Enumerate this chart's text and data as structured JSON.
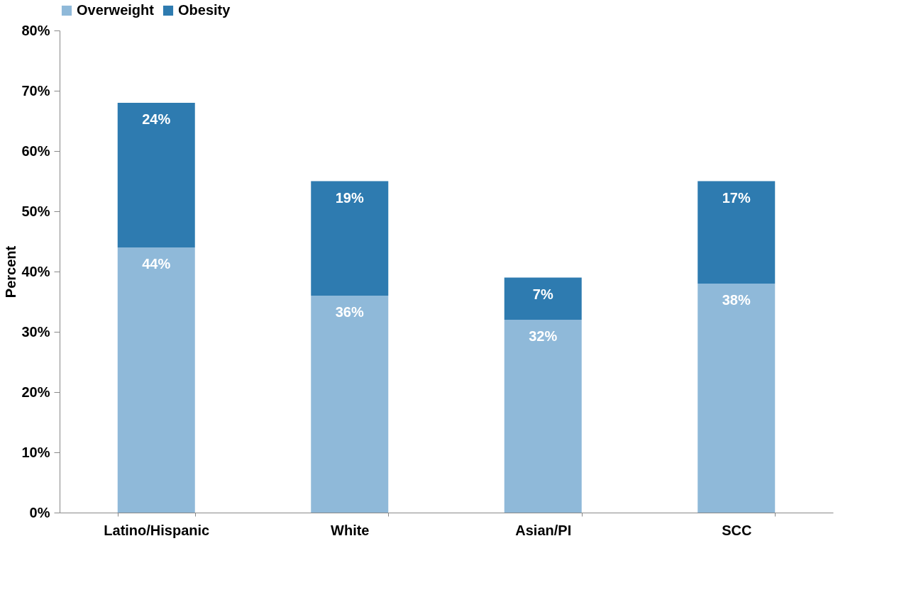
{
  "chart_data": {
    "type": "bar",
    "stacked": true,
    "ylabel": "Percent",
    "categories": [
      "Latino/Hispanic",
      "White",
      "Asian/PI",
      "SCC"
    ],
    "series": [
      {
        "name": "Overweight",
        "color": "#8fb9d9",
        "values": [
          44,
          36,
          32,
          38
        ],
        "value_labels": [
          "44%",
          "36%",
          "32%",
          "38%"
        ]
      },
      {
        "name": "Obesity",
        "color": "#2e7bb0",
        "values": [
          24,
          19,
          7,
          17
        ],
        "value_labels": [
          "24%",
          "19%",
          "7%",
          "17%"
        ]
      }
    ],
    "ylim": [
      0,
      80
    ],
    "yticks": [
      {
        "value": 0,
        "label": "0%"
      },
      {
        "value": 10,
        "label": "10%"
      },
      {
        "value": 20,
        "label": "20%"
      },
      {
        "value": 30,
        "label": "30%"
      },
      {
        "value": 40,
        "label": "40%"
      },
      {
        "value": 50,
        "label": "50%"
      },
      {
        "value": 60,
        "label": "60%"
      },
      {
        "value": 70,
        "label": "70%"
      },
      {
        "value": 80,
        "label": "80%"
      }
    ],
    "grid": false,
    "legend": "top"
  }
}
